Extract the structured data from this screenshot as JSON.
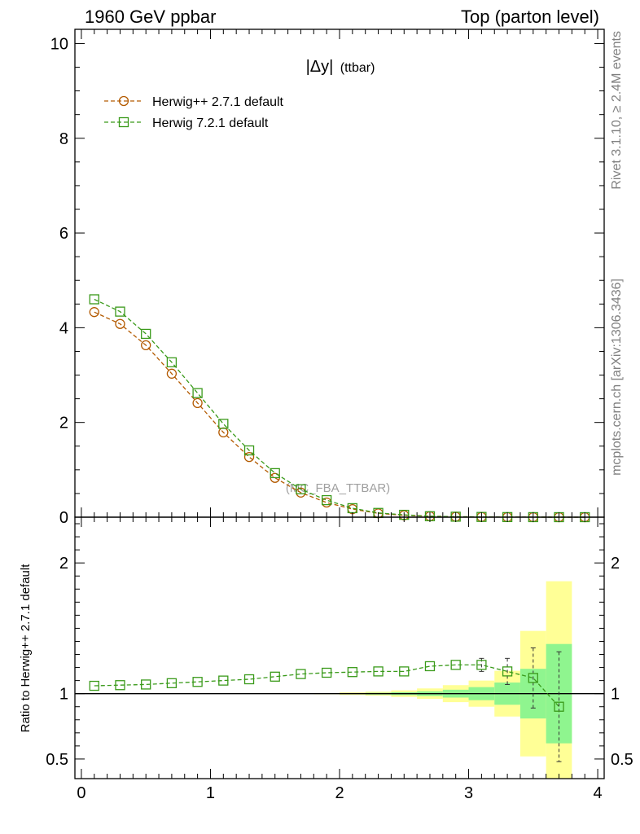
{
  "header": {
    "left": "1960 GeV ppbar",
    "right": "Top (parton level)"
  },
  "main_title": {
    "main": "|Δy|",
    "sub": "(ttbar)"
  },
  "side_labels": {
    "rivet": "Rivet 3.1.10, ≥ 2.4M events",
    "source": "mcplots.cern.ch [arXiv:1306.3436]"
  },
  "watermark": "(MC_FBA_TTBAR)",
  "chart_data": [
    {
      "type": "line",
      "panel": "main",
      "ylim": [
        0,
        10.3
      ],
      "xlim": [
        -0.05,
        4.05
      ],
      "yticks": [
        0,
        2,
        4,
        6,
        8,
        10
      ],
      "ytick_labels": [
        "0",
        "2",
        "4",
        "6",
        "8",
        "10"
      ],
      "legend": {
        "placement": "top-left"
      },
      "x": [
        0.1,
        0.3,
        0.5,
        0.7,
        0.9,
        1.1,
        1.3,
        1.5,
        1.7,
        1.9,
        2.1,
        2.3,
        2.5,
        2.7,
        2.9,
        3.1,
        3.3,
        3.5,
        3.7,
        3.9
      ],
      "series": [
        {
          "name": "Herwig++ 2.7.1 default",
          "color": "#b35a00",
          "marker": "circle",
          "values": [
            4.33,
            4.08,
            3.63,
            3.03,
            2.41,
            1.79,
            1.27,
            0.83,
            0.52,
            0.31,
            0.17,
            0.08,
            0.04,
            0.02,
            0.01,
            0.005,
            0.002,
            0.001,
            0.0005,
            0.0002
          ]
        },
        {
          "name": "Herwig 7.2.1 default",
          "color": "#3a9a1a",
          "marker": "square",
          "values": [
            4.6,
            4.34,
            3.87,
            3.27,
            2.62,
            1.97,
            1.41,
            0.93,
            0.59,
            0.36,
            0.19,
            0.09,
            0.05,
            0.02,
            0.01,
            0.005,
            0.002,
            0.001,
            0.0004,
            0.0002
          ]
        }
      ]
    },
    {
      "type": "line",
      "panel": "ratio",
      "ylabel": "Ratio to Herwig++ 2.7.1 default",
      "ylim": [
        0.35,
        2.35
      ],
      "xlim": [
        -0.05,
        4.05
      ],
      "yticks": [
        0.5,
        1,
        2
      ],
      "ytick_labels": [
        "0.5",
        "1",
        "2"
      ],
      "xticks": [
        0,
        1,
        2,
        3,
        4
      ],
      "xtick_labels": [
        "0",
        "1",
        "2",
        "3",
        "4"
      ],
      "reference": 1,
      "x": [
        0.1,
        0.3,
        0.5,
        0.7,
        0.9,
        1.1,
        1.3,
        1.5,
        1.7,
        1.9,
        2.1,
        2.3,
        2.5,
        2.7,
        2.9,
        3.1,
        3.3,
        3.5,
        3.7
      ],
      "series": [
        {
          "name": "Herwig 7.2.1 default",
          "color": "#3a9a1a",
          "marker": "square",
          "values": [
            1.06,
            1.065,
            1.07,
            1.08,
            1.09,
            1.1,
            1.11,
            1.13,
            1.15,
            1.16,
            1.165,
            1.17,
            1.17,
            1.21,
            1.22,
            1.22,
            1.17,
            1.12,
            0.9
          ],
          "err": [
            0,
            0,
            0,
            0,
            0,
            0,
            0,
            0,
            0,
            0,
            0.005,
            0.005,
            0.01,
            0.015,
            0.02,
            0.05,
            0.1,
            0.23,
            0.42
          ]
        }
      ],
      "bands": {
        "x_edges": [
          0.0,
          0.2,
          0.4,
          0.6,
          0.8,
          1.0,
          1.2,
          1.4,
          1.6,
          1.8,
          2.0,
          2.2,
          2.4,
          2.6,
          2.8,
          3.0,
          3.2,
          3.4,
          3.6,
          3.8
        ],
        "inner": [
          0.0,
          0.0,
          0.0,
          0.0,
          0.0,
          0.0,
          0.0,
          0.0,
          0.0,
          0.002,
          0.004,
          0.007,
          0.011,
          0.018,
          0.03,
          0.05,
          0.085,
          0.19,
          0.38
        ],
        "outer": [
          0.0,
          0.0,
          0.0,
          0.0,
          0.0,
          0.0,
          0.0,
          0.0,
          0.002,
          0.005,
          0.01,
          0.015,
          0.025,
          0.04,
          0.065,
          0.1,
          0.175,
          0.48,
          0.86
        ],
        "inner_color": "#8ff58f",
        "outer_color": "#ffff96"
      }
    }
  ]
}
